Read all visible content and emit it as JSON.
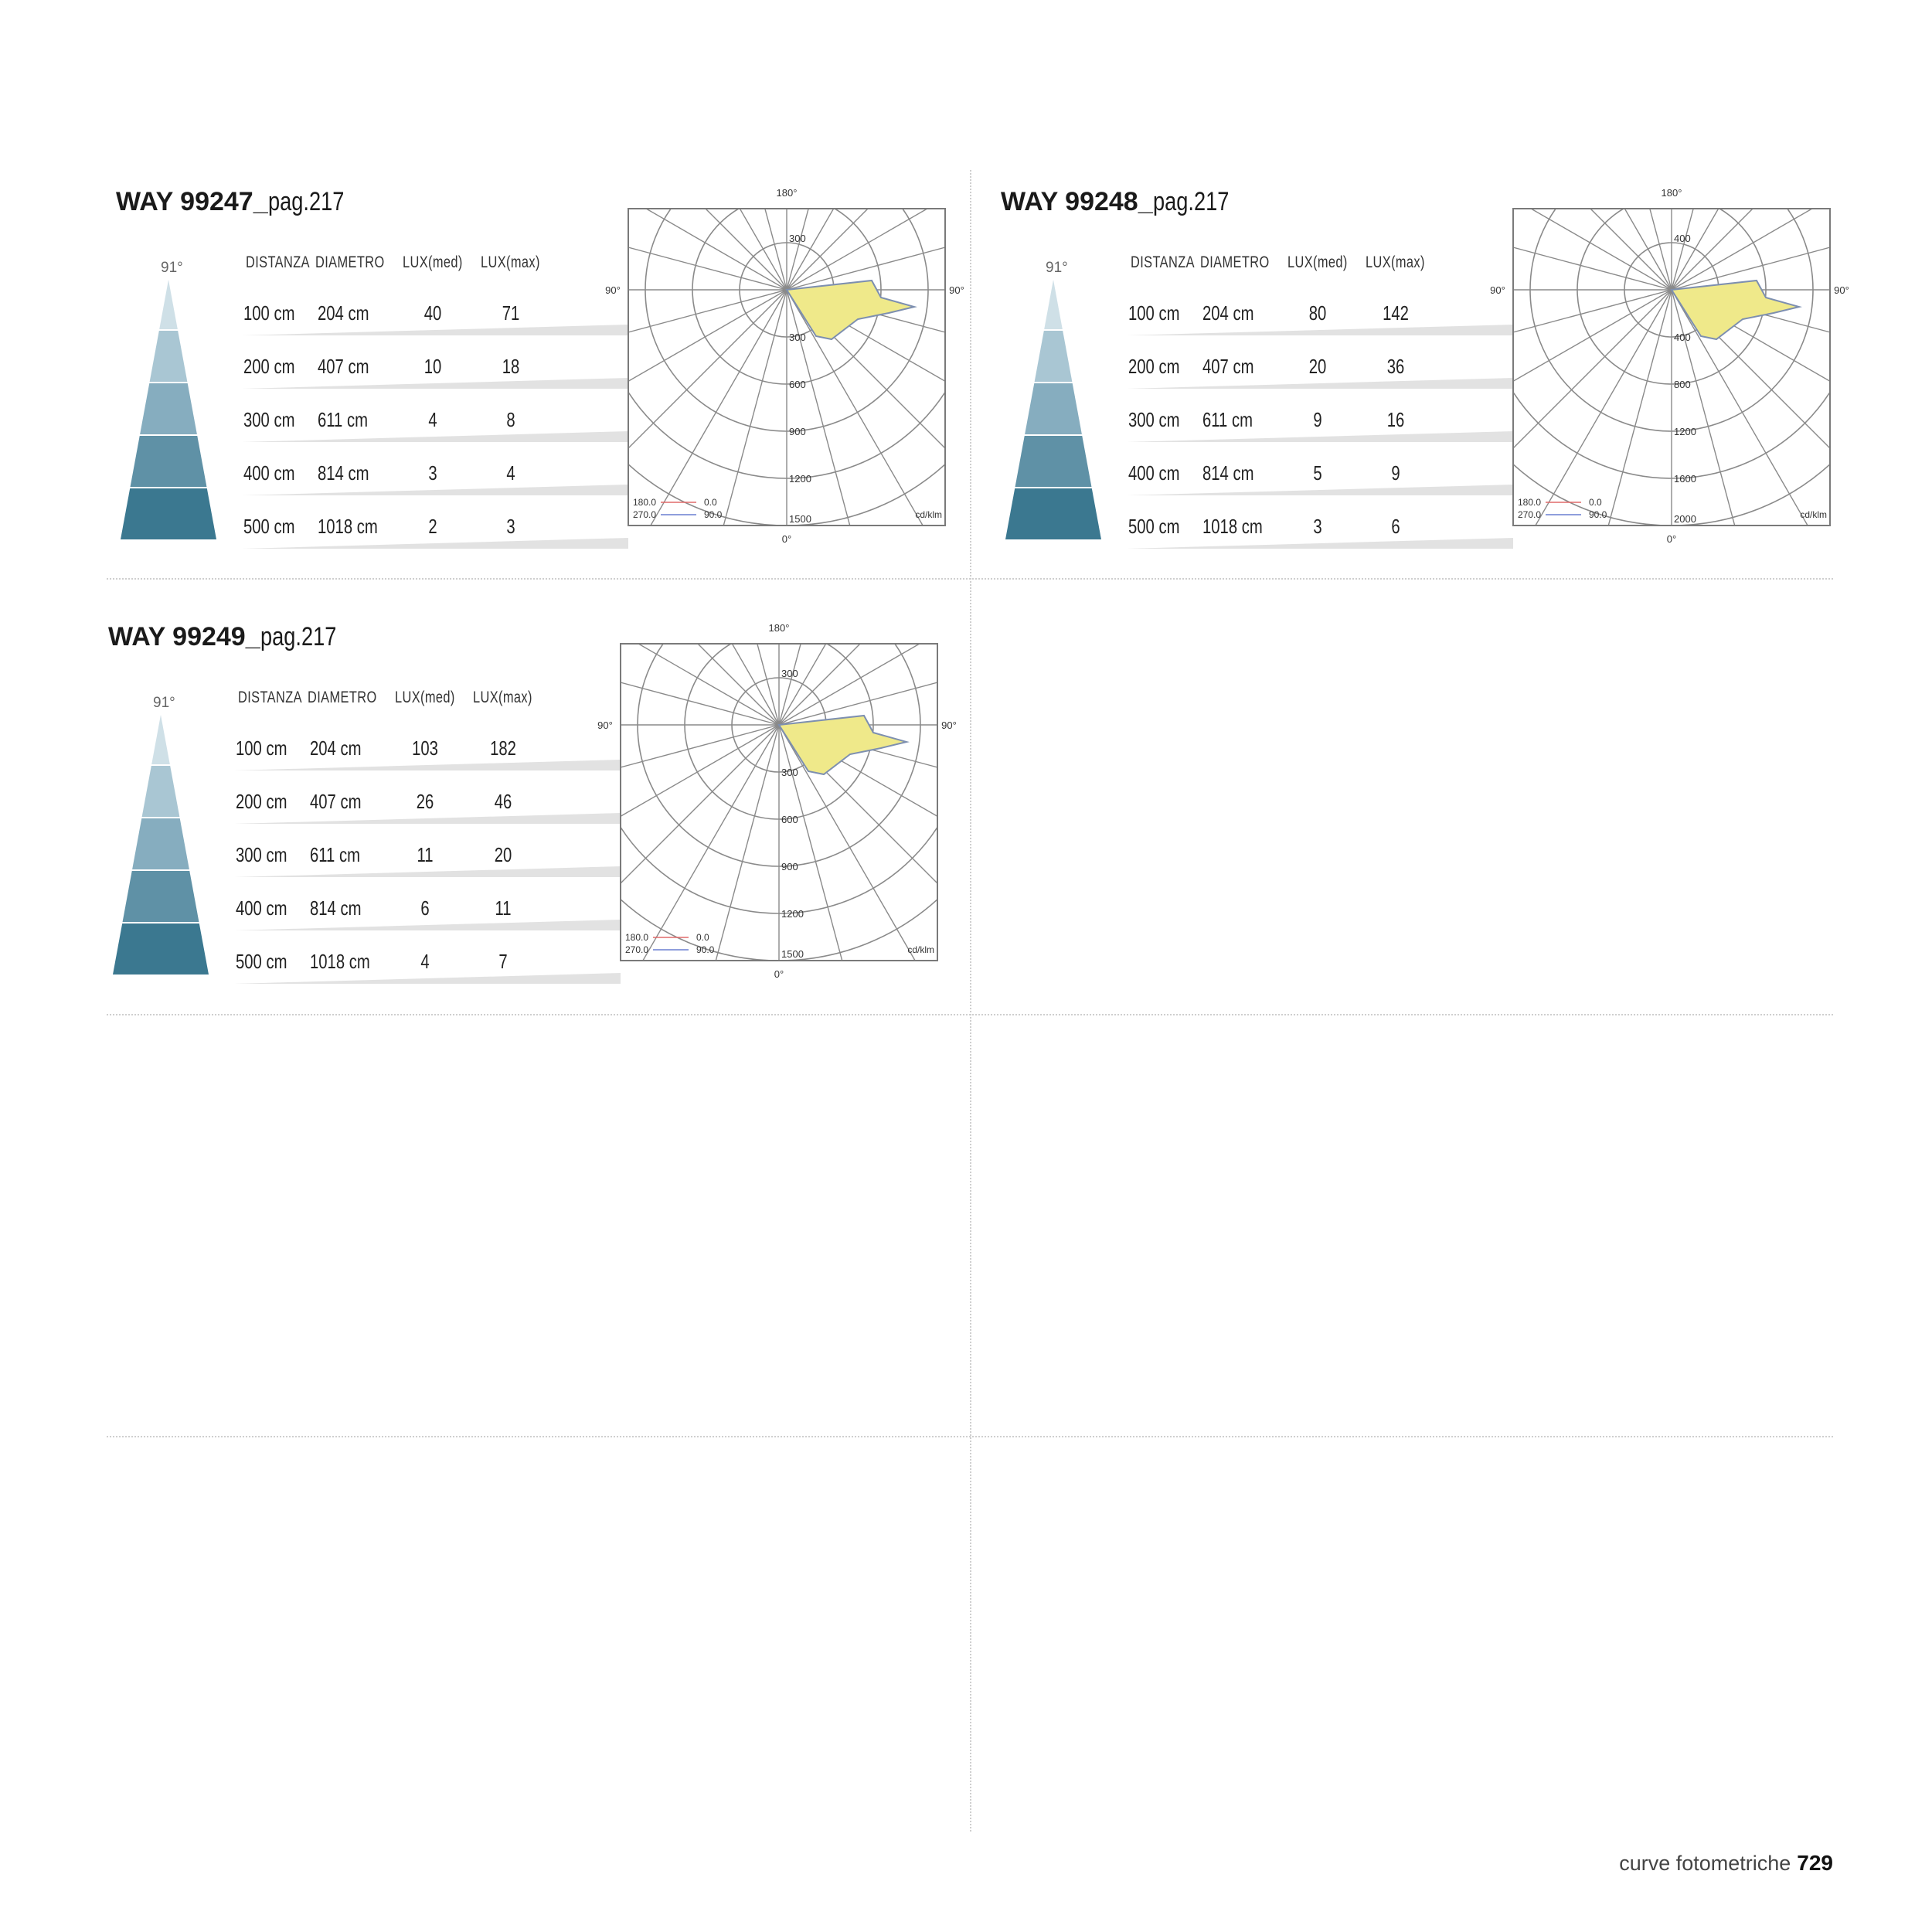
{
  "panels": [
    {
      "code": "WAY 99247_",
      "page": "pag.217",
      "beam_angle": "91°",
      "headers": [
        "DISTANZA",
        "DIAMETRO",
        "LUX(med)",
        "LUX(max)"
      ],
      "rows": [
        {
          "distance": "100 cm",
          "diameter": "204 cm",
          "lux_med": "40",
          "lux_max": "71"
        },
        {
          "distance": "200 cm",
          "diameter": "407 cm",
          "lux_med": "10",
          "lux_max": "18"
        },
        {
          "distance": "300 cm",
          "diameter": "611 cm",
          "lux_med": "4",
          "lux_max": "8"
        },
        {
          "distance": "400 cm",
          "diameter": "814 cm",
          "lux_med": "3",
          "lux_max": "4"
        },
        {
          "distance": "500 cm",
          "diameter": "1018 cm",
          "lux_med": "2",
          "lux_max": "3"
        }
      ],
      "polar": {
        "top_label": "180°",
        "bottom_label": "0°",
        "left_label": "90°",
        "right_label": "90°",
        "upper_label": "300",
        "rings": [
          "300",
          "600",
          "900",
          "1200",
          "1500"
        ],
        "legend": [
          [
            "180.0",
            "0.0"
          ],
          [
            "270.0",
            "90.0"
          ]
        ],
        "unit": "cd/klm"
      }
    },
    {
      "code": "WAY 99248_",
      "page": "pag.217",
      "beam_angle": "91°",
      "headers": [
        "DISTANZA",
        "DIAMETRO",
        "LUX(med)",
        "LUX(max)"
      ],
      "rows": [
        {
          "distance": "100 cm",
          "diameter": "204 cm",
          "lux_med": "80",
          "lux_max": "142"
        },
        {
          "distance": "200 cm",
          "diameter": "407 cm",
          "lux_med": "20",
          "lux_max": "36"
        },
        {
          "distance": "300 cm",
          "diameter": "611 cm",
          "lux_med": "9",
          "lux_max": "16"
        },
        {
          "distance": "400 cm",
          "diameter": "814 cm",
          "lux_med": "5",
          "lux_max": "9"
        },
        {
          "distance": "500 cm",
          "diameter": "1018 cm",
          "lux_med": "3",
          "lux_max": "6"
        }
      ],
      "polar": {
        "top_label": "180°",
        "bottom_label": "0°",
        "left_label": "90°",
        "right_label": "90°",
        "upper_label": "400",
        "rings": [
          "400",
          "800",
          "1200",
          "1600",
          "2000"
        ],
        "legend": [
          [
            "180.0",
            "0.0"
          ],
          [
            "270.0",
            "90.0"
          ]
        ],
        "unit": "cd/klm"
      }
    },
    {
      "code": "WAY 99249_",
      "page": "pag.217",
      "beam_angle": "91°",
      "headers": [
        "DISTANZA",
        "DIAMETRO",
        "LUX(med)",
        "LUX(max)"
      ],
      "rows": [
        {
          "distance": "100 cm",
          "diameter": "204 cm",
          "lux_med": "103",
          "lux_max": "182"
        },
        {
          "distance": "200 cm",
          "diameter": "407 cm",
          "lux_med": "26",
          "lux_max": "46"
        },
        {
          "distance": "300 cm",
          "diameter": "611 cm",
          "lux_med": "11",
          "lux_max": "20"
        },
        {
          "distance": "400 cm",
          "diameter": "814 cm",
          "lux_med": "6",
          "lux_max": "11"
        },
        {
          "distance": "500 cm",
          "diameter": "1018 cm",
          "lux_med": "4",
          "lux_max": "7"
        }
      ],
      "polar": {
        "top_label": "180°",
        "bottom_label": "0°",
        "left_label": "90°",
        "right_label": "90°",
        "upper_label": "300",
        "rings": [
          "300",
          "600",
          "900",
          "1200",
          "1500"
        ],
        "legend": [
          [
            "180.0",
            "0.0"
          ],
          [
            "270.0",
            "90.0"
          ]
        ],
        "unit": "cd/klm"
      }
    }
  ],
  "colors": {
    "cone": [
      "#cfe0e7",
      "#a9c6d3",
      "#86adbf",
      "#5f91a6",
      "#3b7890"
    ],
    "beam_fill": "#efe98a",
    "beam_stroke": "#7d8fb0",
    "legend_red": "#e06a6a",
    "legend_blue": "#6a7fd0"
  },
  "footer": {
    "label": "curve fotometriche",
    "page_number": "729"
  }
}
